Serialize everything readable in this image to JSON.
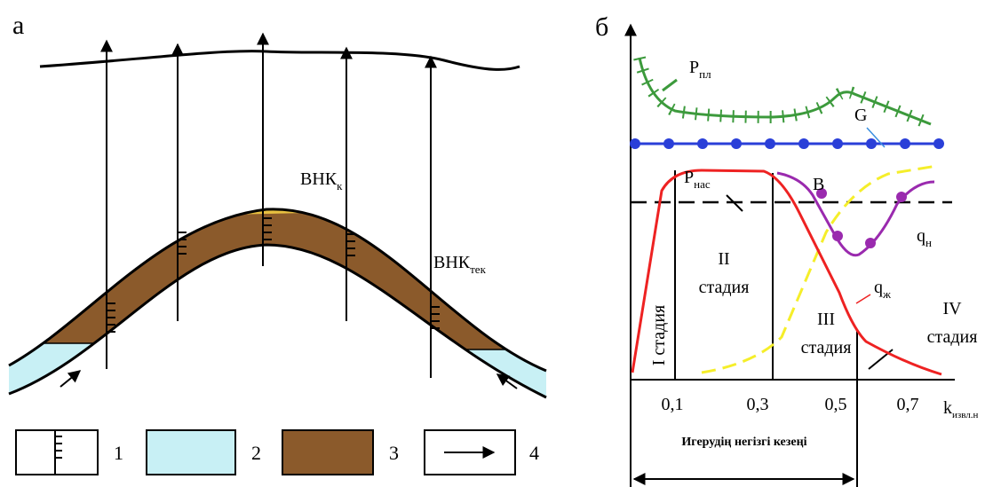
{
  "panel_a": {
    "label": "а",
    "contact_final": {
      "text": "ВНК",
      "sub": "к"
    },
    "contact_current": {
      "text": "ВНК",
      "sub": "тек"
    }
  },
  "legend": {
    "items": [
      "1",
      "2",
      "3",
      "4"
    ]
  },
  "panel_b": {
    "label": "б",
    "p_res": {
      "text": "P",
      "sub": "пл"
    },
    "g": "G",
    "b": "B",
    "p_sat": {
      "text": "P",
      "sub": "нас"
    },
    "q_oil": {
      "text": "q",
      "sub": "н"
    },
    "q_liq": {
      "text": "q",
      "sub": "ж"
    },
    "stage_1": "I стадия",
    "stage_2": [
      "II",
      "стадия"
    ],
    "stage_3": [
      "III",
      "стадия"
    ],
    "stage_4": [
      "IV",
      "стадия"
    ],
    "x_ticks": [
      "0,1",
      "0,3",
      "0,5",
      "0,7"
    ],
    "x_label": {
      "text": "k",
      "sub": "извл.н"
    },
    "main_period": "Игерудің негізгі кезеңі"
  }
}
